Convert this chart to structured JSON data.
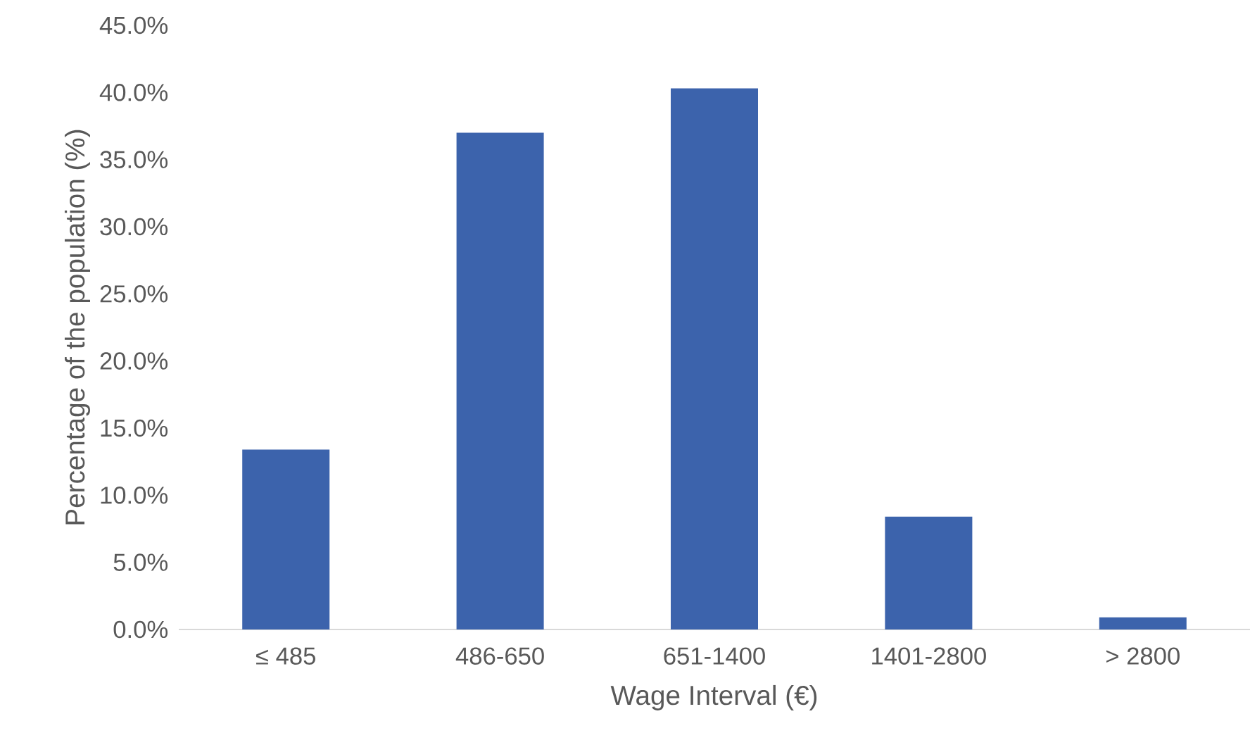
{
  "chart_data": {
    "type": "bar",
    "xlabel": "Wage Interval (€)",
    "ylabel": "Percentage of the population (%)",
    "categories": [
      "≤ 485",
      "486-650",
      "651-1400",
      "1401-2800",
      "> 2800"
    ],
    "values": [
      13.4,
      37.0,
      40.3,
      8.4,
      0.9
    ],
    "color": "#3c63ac",
    "ylim": [
      0,
      45
    ],
    "yticks": [
      {
        "value": 0,
        "label": "0.0%"
      },
      {
        "value": 5,
        "label": "5.0%"
      },
      {
        "value": 10,
        "label": "10.0%"
      },
      {
        "value": 15,
        "label": "15.0%"
      },
      {
        "value": 20,
        "label": "20.0%"
      },
      {
        "value": 25,
        "label": "25.0%"
      },
      {
        "value": 30,
        "label": "30.0%"
      },
      {
        "value": 35,
        "label": "35.0%"
      },
      {
        "value": 40,
        "label": "40.0%"
      },
      {
        "value": 45,
        "label": "45.0%"
      }
    ]
  }
}
